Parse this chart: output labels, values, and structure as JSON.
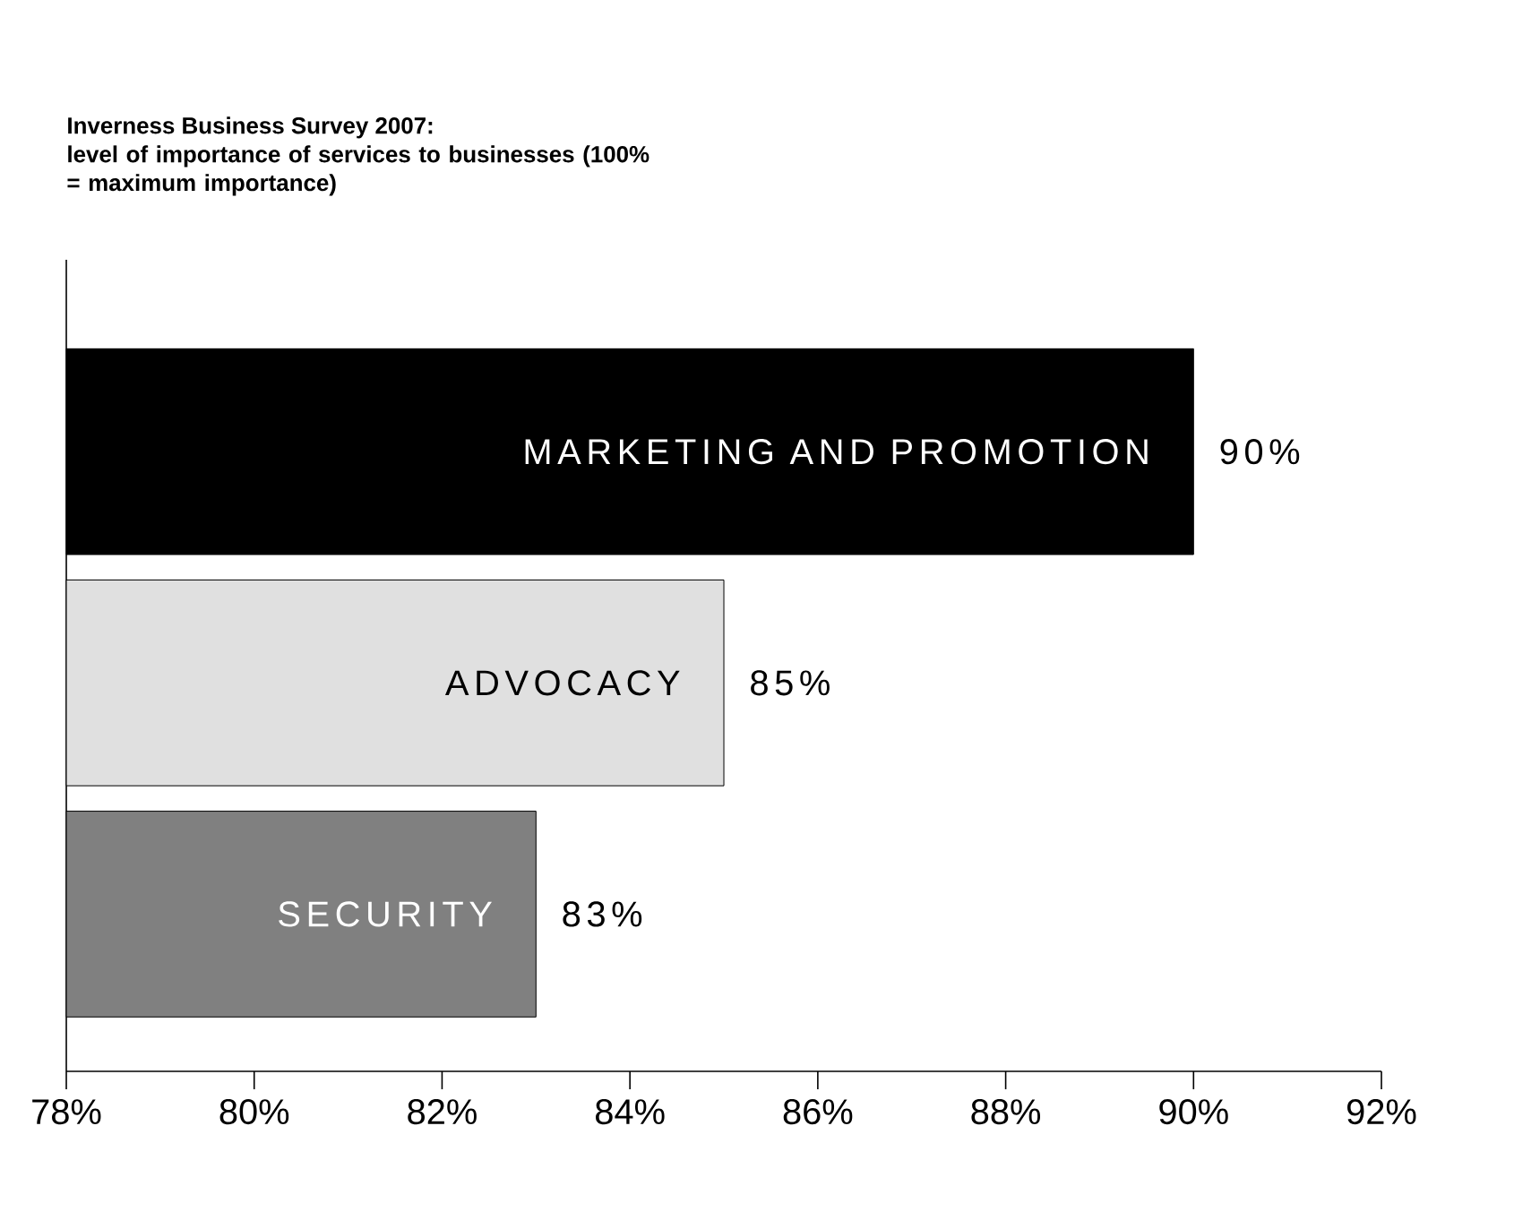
{
  "chart_data": {
    "type": "bar",
    "orientation": "horizontal",
    "title": "Inverness Business Survey 2007:",
    "subtitle": "level of importance of services to businesses (100% = maximum importance)",
    "categories": [
      "MARKETING AND PROMOTION",
      "ADVOCACY",
      "SECURITY"
    ],
    "values": [
      90,
      85,
      83
    ],
    "colors": [
      "#000000",
      "#e0e0e0",
      "#808080"
    ],
    "value_labels": [
      "90%",
      "85%",
      "83%"
    ],
    "xlim": [
      78,
      92
    ],
    "xticks": [
      {
        "value": 78,
        "label": "78%"
      },
      {
        "value": 80,
        "label": "80%"
      },
      {
        "value": 82,
        "label": "82%"
      },
      {
        "value": 84,
        "label": "84%"
      },
      {
        "value": 86,
        "label": "86%"
      },
      {
        "value": 88,
        "label": "88%"
      },
      {
        "value": 90,
        "label": "90%"
      },
      {
        "value": 92,
        "label": "92%"
      }
    ]
  }
}
